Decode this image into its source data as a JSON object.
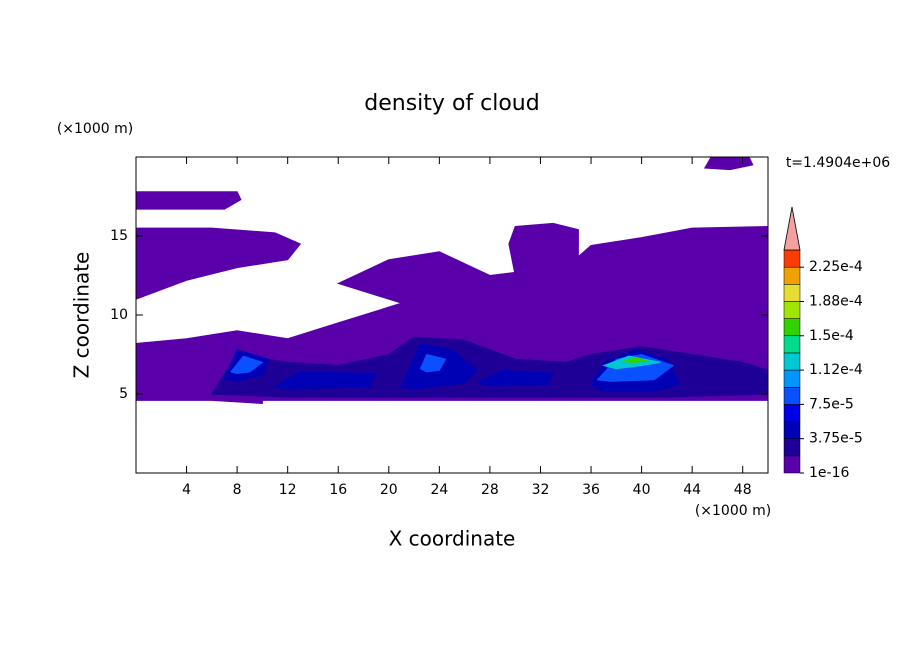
{
  "chart_data": {
    "type": "contour",
    "title": "density of cloud",
    "xlabel": "X coordinate",
    "ylabel": "Z coordinate",
    "xunit": "(×1000 m)",
    "yunit": "(×1000 m)",
    "time_label": "t=1.4904e+06",
    "xlim": [
      0,
      50
    ],
    "ylim": [
      0,
      20
    ],
    "xticks": [
      4,
      8,
      12,
      16,
      20,
      24,
      28,
      32,
      36,
      40,
      44,
      48
    ],
    "yticks": [
      5,
      10,
      15
    ],
    "colorbar": {
      "levels": [
        1e-16,
        1.875e-05,
        3.75e-05,
        5.625e-05,
        7.5e-05,
        9.375e-05,
        0.0001125,
        0.00013125,
        0.00015,
        0.00016875,
        0.0001875,
        0.00020625,
        0.000225,
        0.00024375
      ],
      "colors": [
        "#5a00aa",
        "#1e0096",
        "#0000b4",
        "#0000e6",
        "#0a50ff",
        "#0096ff",
        "#00c8d2",
        "#00dc8c",
        "#32d200",
        "#a0e600",
        "#e6dc32",
        "#f0a000",
        "#fa3c00"
      ],
      "extend_color": "#f4a0a0",
      "ticks": [
        1e-16,
        {
          "value": 3.75e-05,
          "label": "3.75e-5"
        },
        {
          "value": 7.5e-05,
          "label": "7.5e-5"
        },
        {
          "value": 0.0001125,
          "label": "1.12e-4"
        },
        {
          "value": 0.00015,
          "label": "1.5e-4"
        },
        {
          "value": 0.0001875,
          "label": "1.88e-4"
        },
        {
          "value": 0.000225,
          "label": "2.25e-4"
        }
      ]
    },
    "regions": [
      {
        "level": 1e-16,
        "x": [
          0,
          0,
          4,
          8,
          12,
          16,
          20,
          24,
          28,
          32,
          36,
          40,
          44,
          48,
          50,
          50,
          10,
          10,
          6,
          0
        ],
        "z": [
          5.5,
          8.2,
          8.5,
          9,
          8.5,
          9.5,
          10.5,
          11.5,
          11,
          10.5,
          11.5,
          11.5,
          11,
          10.5,
          10,
          4.6,
          4.6,
          4.4,
          4.6,
          4.6
        ]
      },
      {
        "level": 1e-16,
        "x": [
          0,
          0,
          6,
          11,
          13,
          12,
          8,
          4
        ],
        "z": [
          11,
          15.5,
          15.5,
          15.2,
          14.5,
          13.5,
          13,
          12.2
        ]
      },
      {
        "level": 1e-16,
        "x": [
          16,
          20,
          24,
          28,
          30,
          33,
          34,
          36,
          40,
          44,
          50,
          50,
          24
        ],
        "z": [
          12,
          13.5,
          14,
          12.5,
          12.7,
          12.4,
          13,
          14.4,
          14.9,
          15.5,
          15.6,
          10,
          10
        ]
      },
      {
        "level": 1e-16,
        "x": [
          29.5,
          30,
          33,
          35,
          35,
          33,
          30
        ],
        "z": [
          14.5,
          15.6,
          15.8,
          15.4,
          13.5,
          12,
          12.5
        ]
      },
      {
        "level": 1e-16,
        "x": [
          0,
          0,
          8,
          8.3,
          7
        ],
        "z": [
          16.7,
          17.8,
          17.8,
          17.3,
          16.7
        ]
      },
      {
        "level": 1e-16,
        "x": [
          45,
          45.5,
          48.5,
          48.8,
          47
        ],
        "z": [
          19.3,
          20,
          20,
          19.5,
          19.2
        ]
      },
      {
        "level": 1.875e-05,
        "x": [
          6,
          8,
          12,
          16,
          20,
          22,
          26,
          30,
          34,
          36,
          40,
          44,
          48,
          50,
          50,
          42,
          12
        ],
        "z": [
          5,
          7.5,
          7,
          6.8,
          7.5,
          8.6,
          8.4,
          7.2,
          7,
          7.5,
          8,
          7.5,
          7,
          6.5,
          5,
          4.8,
          4.8
        ]
      },
      {
        "level": 3.75e-05,
        "x": [
          7,
          8,
          10.5,
          10,
          8
        ],
        "z": [
          6,
          7.8,
          7.2,
          6.2,
          5.8
        ]
      },
      {
        "level": 3.75e-05,
        "x": [
          11,
          13,
          19,
          18.5,
          12
        ],
        "z": [
          5.5,
          6.4,
          6.3,
          5.5,
          5.3
        ]
      },
      {
        "level": 3.75e-05,
        "x": [
          21,
          22.5,
          25,
          27,
          26,
          22
        ],
        "z": [
          5.5,
          8.2,
          7.8,
          6.5,
          5.7,
          5.3
        ]
      },
      {
        "level": 3.75e-05,
        "x": [
          27,
          29,
          33,
          32.5,
          28
        ],
        "z": [
          5.7,
          6.5,
          6.3,
          5.6,
          5.5
        ]
      },
      {
        "level": 3.75e-05,
        "x": [
          36,
          37,
          39.5,
          42,
          43,
          41,
          37
        ],
        "z": [
          5.6,
          7,
          7.8,
          7.2,
          5.6,
          5.2,
          5.2
        ]
      },
      {
        "level": 7.5e-05,
        "x": [
          7.5,
          8.5,
          10,
          9,
          8
        ],
        "z": [
          6.4,
          7.4,
          7,
          6.4,
          6.3
        ]
      },
      {
        "level": 7.5e-05,
        "x": [
          22.5,
          23,
          24.5,
          24,
          23
        ],
        "z": [
          6.6,
          7.5,
          7.2,
          6.5,
          6.4
        ]
      },
      {
        "level": 7.5e-05,
        "x": [
          36.5,
          38,
          40,
          42.5,
          41,
          37.5
        ],
        "z": [
          5.9,
          7.2,
          7.5,
          6.8,
          5.9,
          5.8
        ]
      },
      {
        "level": 0.0001125,
        "x": [
          37,
          39,
          41.5,
          40,
          38
        ],
        "z": [
          6.8,
          7.4,
          7,
          6.8,
          6.6
        ]
      },
      {
        "level": 0.00015,
        "x": [
          38.5,
          39.5,
          40.5,
          39.5
        ],
        "z": [
          7.05,
          7.3,
          7.1,
          7.0
        ]
      }
    ]
  }
}
